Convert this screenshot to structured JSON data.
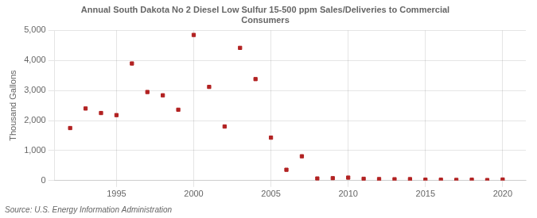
{
  "chart_data": {
    "type": "scatter",
    "title": "Annual South Dakota No 2 Diesel Low Sulfur 15-500 ppm Sales/Deliveries to Commercial\nConsumers",
    "ylabel": "Thousand Gallons",
    "source": "Source: U.S. Energy Information Administration",
    "x": [
      1992,
      1993,
      1994,
      1995,
      1996,
      1997,
      1998,
      1999,
      2000,
      2001,
      2002,
      2003,
      2004,
      2005,
      2006,
      2007,
      2008,
      2009,
      2010,
      2011,
      2012,
      2013,
      2014,
      2015,
      2016,
      2017,
      2018,
      2019,
      2020
    ],
    "values": [
      1750,
      2400,
      2250,
      2180,
      3900,
      2950,
      2840,
      2360,
      4850,
      3120,
      1800,
      4420,
      3380,
      1430,
      360,
      810,
      70,
      80,
      100,
      60,
      50,
      45,
      48,
      30,
      28,
      22,
      28,
      18,
      35
    ],
    "color": "#b22222",
    "marker": "square",
    "xlim": [
      1991,
      2021.5
    ],
    "xticks": [
      1995,
      2000,
      2005,
      2010,
      2015,
      2020
    ],
    "ylim": [
      0,
      5000
    ],
    "yticks": [
      0,
      {
        "value": 1000,
        "label": "1,000"
      },
      {
        "value": 2000,
        "label": "2,000"
      },
      {
        "value": 3000,
        "label": "3,000"
      },
      {
        "value": 4000,
        "label": "4,000"
      },
      {
        "value": 5000,
        "label": "5,000"
      }
    ],
    "grid": true
  }
}
